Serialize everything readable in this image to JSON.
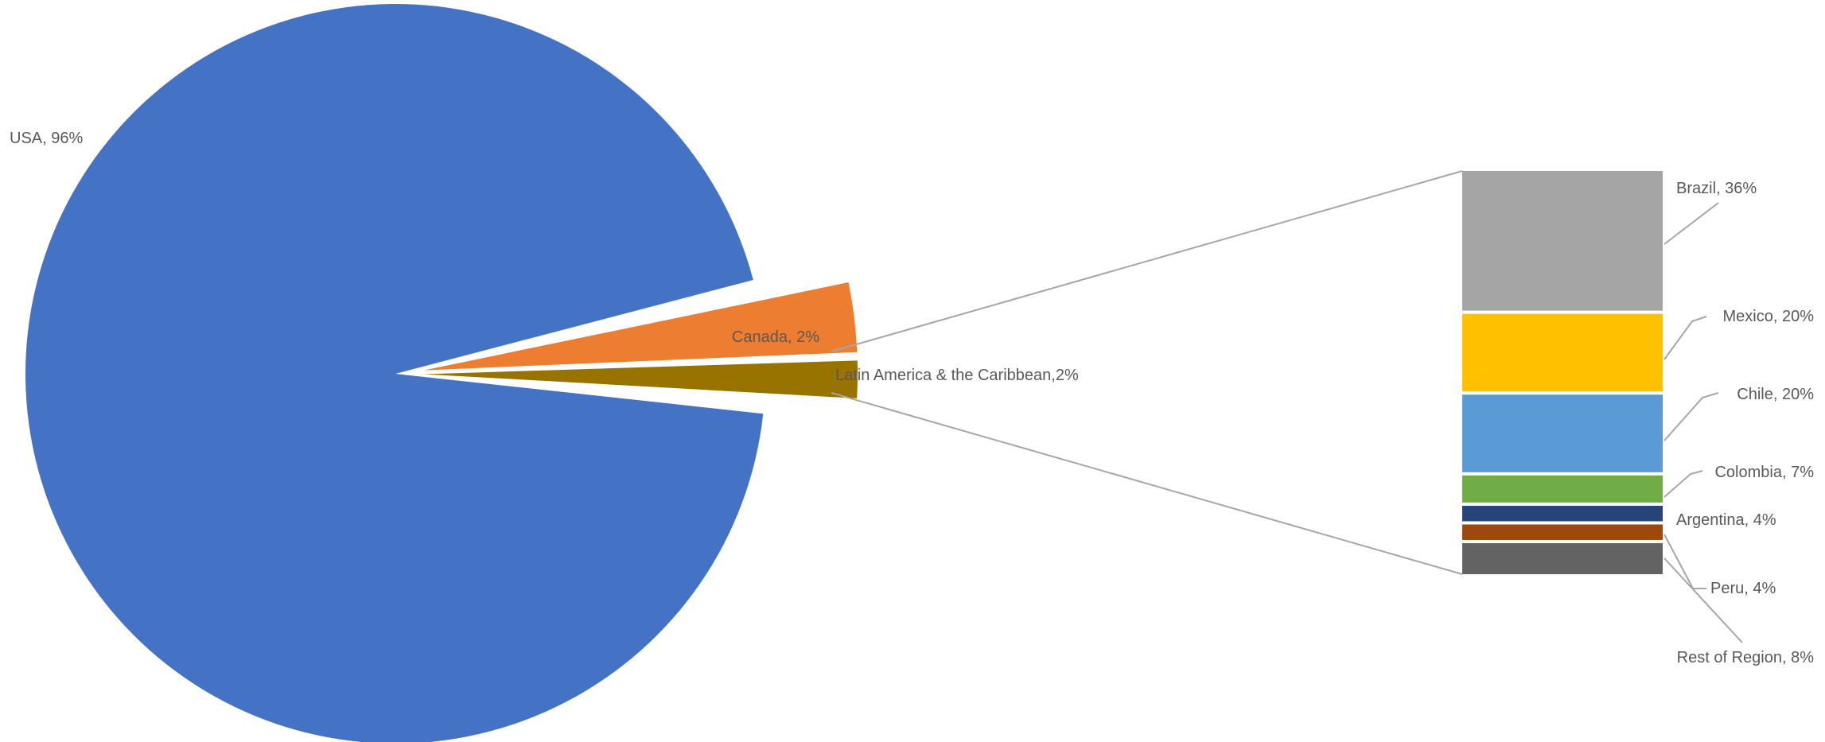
{
  "chart_data": {
    "type": "pie",
    "subtype": "bar-of-pie",
    "title": "",
    "pie": {
      "slices": [
        {
          "name": "USA",
          "value": 96,
          "label": "USA, 96%",
          "color": "#4472C4"
        },
        {
          "name": "Canada",
          "value": 2,
          "label": "Canada, 2%",
          "color": "#ED7D31"
        },
        {
          "name": "Latin America & the Caribbean",
          "value": 2,
          "label": "Latin America & the Caribbean,2%",
          "color": "#997300"
        }
      ]
    },
    "bar": {
      "segments": [
        {
          "name": "Brazil",
          "value": 36,
          "label": "Brazil, 36%",
          "color": "#A5A5A5"
        },
        {
          "name": "Mexico",
          "value": 20,
          "label": "Mexico, 20%",
          "color": "#FFC000"
        },
        {
          "name": "Chile",
          "value": 20,
          "label": "Chile, 20%",
          "color": "#5B9BD5"
        },
        {
          "name": "Colombia",
          "value": 7,
          "label": "Colombia, 7%",
          "color": "#70AD47"
        },
        {
          "name": "Argentina",
          "value": 4,
          "label": "Argentina, 4%",
          "color": "#264478"
        },
        {
          "name": "Peru",
          "value": 4,
          "label": "Peru, 4%",
          "color": "#9E480E"
        },
        {
          "name": "Rest of Region",
          "value": 8,
          "label": "Rest of Region, 8%",
          "color": "#636363"
        }
      ]
    },
    "legend": "none",
    "grid": false
  }
}
